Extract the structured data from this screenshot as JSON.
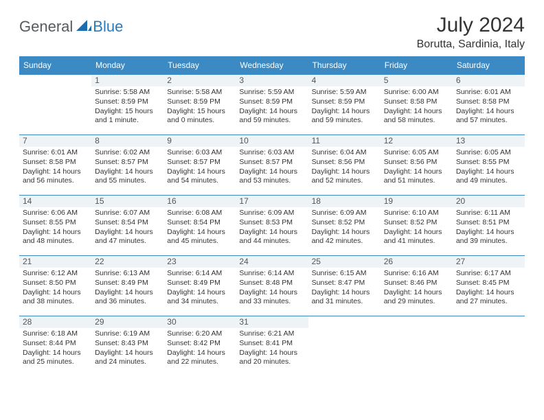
{
  "brand": {
    "general": "General",
    "blue": "Blue"
  },
  "header": {
    "title": "July 2024",
    "location": "Borutta, Sardinia, Italy"
  },
  "colors": {
    "headerBg": "#3b8ac4",
    "headerText": "#ffffff",
    "dayNumBg": "#eef3f6",
    "rule": "#3b8ac4"
  },
  "weekdays": [
    "Sunday",
    "Monday",
    "Tuesday",
    "Wednesday",
    "Thursday",
    "Friday",
    "Saturday"
  ],
  "weeks": [
    [
      null,
      {
        "n": "1",
        "sr": "5:58 AM",
        "ss": "8:59 PM",
        "dl": "15 hours and 1 minute."
      },
      {
        "n": "2",
        "sr": "5:58 AM",
        "ss": "8:59 PM",
        "dl": "15 hours and 0 minutes."
      },
      {
        "n": "3",
        "sr": "5:59 AM",
        "ss": "8:59 PM",
        "dl": "14 hours and 59 minutes."
      },
      {
        "n": "4",
        "sr": "5:59 AM",
        "ss": "8:59 PM",
        "dl": "14 hours and 59 minutes."
      },
      {
        "n": "5",
        "sr": "6:00 AM",
        "ss": "8:58 PM",
        "dl": "14 hours and 58 minutes."
      },
      {
        "n": "6",
        "sr": "6:01 AM",
        "ss": "8:58 PM",
        "dl": "14 hours and 57 minutes."
      }
    ],
    [
      {
        "n": "7",
        "sr": "6:01 AM",
        "ss": "8:58 PM",
        "dl": "14 hours and 56 minutes."
      },
      {
        "n": "8",
        "sr": "6:02 AM",
        "ss": "8:57 PM",
        "dl": "14 hours and 55 minutes."
      },
      {
        "n": "9",
        "sr": "6:03 AM",
        "ss": "8:57 PM",
        "dl": "14 hours and 54 minutes."
      },
      {
        "n": "10",
        "sr": "6:03 AM",
        "ss": "8:57 PM",
        "dl": "14 hours and 53 minutes."
      },
      {
        "n": "11",
        "sr": "6:04 AM",
        "ss": "8:56 PM",
        "dl": "14 hours and 52 minutes."
      },
      {
        "n": "12",
        "sr": "6:05 AM",
        "ss": "8:56 PM",
        "dl": "14 hours and 51 minutes."
      },
      {
        "n": "13",
        "sr": "6:05 AM",
        "ss": "8:55 PM",
        "dl": "14 hours and 49 minutes."
      }
    ],
    [
      {
        "n": "14",
        "sr": "6:06 AM",
        "ss": "8:55 PM",
        "dl": "14 hours and 48 minutes."
      },
      {
        "n": "15",
        "sr": "6:07 AM",
        "ss": "8:54 PM",
        "dl": "14 hours and 47 minutes."
      },
      {
        "n": "16",
        "sr": "6:08 AM",
        "ss": "8:54 PM",
        "dl": "14 hours and 45 minutes."
      },
      {
        "n": "17",
        "sr": "6:09 AM",
        "ss": "8:53 PM",
        "dl": "14 hours and 44 minutes."
      },
      {
        "n": "18",
        "sr": "6:09 AM",
        "ss": "8:52 PM",
        "dl": "14 hours and 42 minutes."
      },
      {
        "n": "19",
        "sr": "6:10 AM",
        "ss": "8:52 PM",
        "dl": "14 hours and 41 minutes."
      },
      {
        "n": "20",
        "sr": "6:11 AM",
        "ss": "8:51 PM",
        "dl": "14 hours and 39 minutes."
      }
    ],
    [
      {
        "n": "21",
        "sr": "6:12 AM",
        "ss": "8:50 PM",
        "dl": "14 hours and 38 minutes."
      },
      {
        "n": "22",
        "sr": "6:13 AM",
        "ss": "8:49 PM",
        "dl": "14 hours and 36 minutes."
      },
      {
        "n": "23",
        "sr": "6:14 AM",
        "ss": "8:49 PM",
        "dl": "14 hours and 34 minutes."
      },
      {
        "n": "24",
        "sr": "6:14 AM",
        "ss": "8:48 PM",
        "dl": "14 hours and 33 minutes."
      },
      {
        "n": "25",
        "sr": "6:15 AM",
        "ss": "8:47 PM",
        "dl": "14 hours and 31 minutes."
      },
      {
        "n": "26",
        "sr": "6:16 AM",
        "ss": "8:46 PM",
        "dl": "14 hours and 29 minutes."
      },
      {
        "n": "27",
        "sr": "6:17 AM",
        "ss": "8:45 PM",
        "dl": "14 hours and 27 minutes."
      }
    ],
    [
      {
        "n": "28",
        "sr": "6:18 AM",
        "ss": "8:44 PM",
        "dl": "14 hours and 25 minutes."
      },
      {
        "n": "29",
        "sr": "6:19 AM",
        "ss": "8:43 PM",
        "dl": "14 hours and 24 minutes."
      },
      {
        "n": "30",
        "sr": "6:20 AM",
        "ss": "8:42 PM",
        "dl": "14 hours and 22 minutes."
      },
      {
        "n": "31",
        "sr": "6:21 AM",
        "ss": "8:41 PM",
        "dl": "14 hours and 20 minutes."
      },
      null,
      null,
      null
    ]
  ],
  "labels": {
    "sunrise": "Sunrise: ",
    "sunset": "Sunset: ",
    "daylight": "Daylight: "
  }
}
